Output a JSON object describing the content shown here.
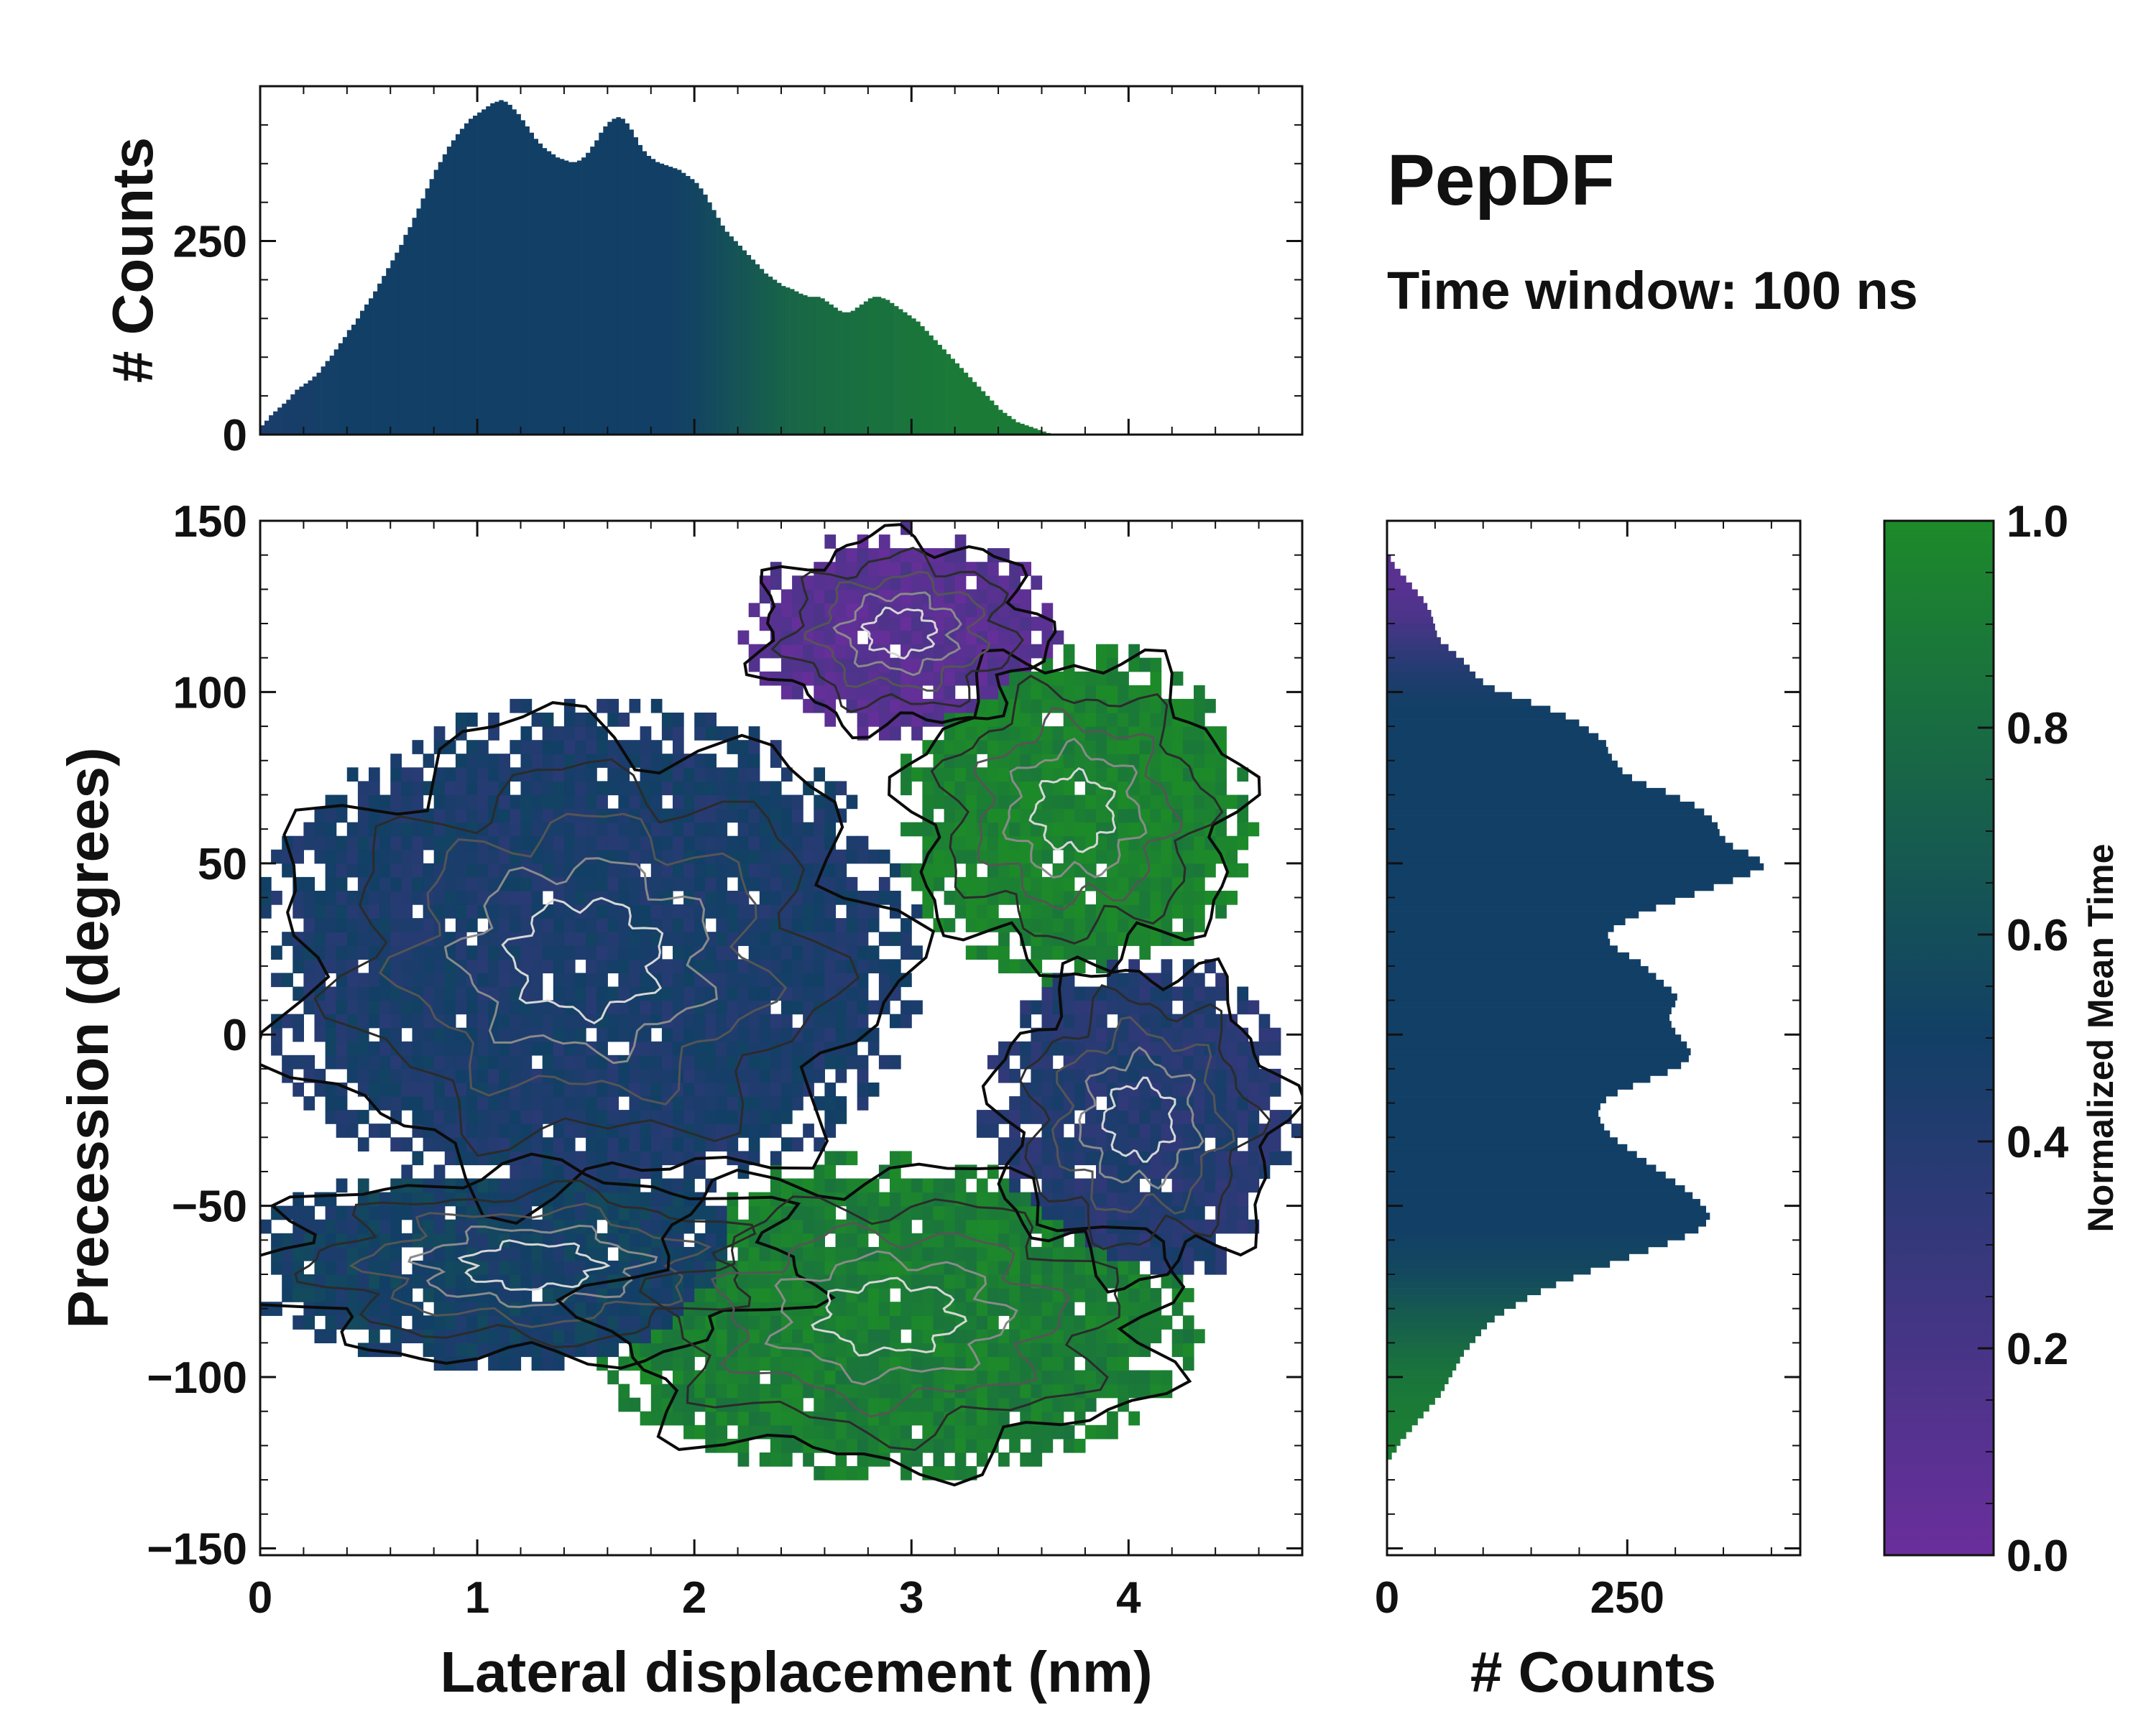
{
  "chart_data": {
    "type": "heatmap",
    "title": "PepDF",
    "subtitle": "Time window: 100 ns",
    "colormap": {
      "low": "#6a2e9c",
      "mid": "#123f66",
      "high": "#1d8a2a",
      "label": "Normalized Mean Time",
      "range": [
        0.0,
        1.0
      ],
      "ticks": [
        0.0,
        0.2,
        0.4,
        0.6,
        0.8,
        1.0
      ],
      "tick_labels": [
        "0.0",
        "0.2",
        "0.4",
        "0.6",
        "0.8",
        "1.0"
      ]
    },
    "main": {
      "xlabel": "Lateral displacement (nm)",
      "ylabel": "Precession (degrees)",
      "xlim": [
        0,
        4.8
      ],
      "ylim": [
        -152,
        150
      ],
      "xticks": [
        0,
        1,
        2,
        3,
        4
      ],
      "xtick_labels": [
        "0",
        "1",
        "2",
        "3",
        "4"
      ],
      "yticks": [
        -150,
        -100,
        -50,
        0,
        50,
        100,
        150
      ],
      "ytick_labels": [
        "−150",
        "−100",
        "−50",
        "0",
        "50",
        "100",
        "150"
      ],
      "regions": [
        {
          "name": "upper purple lobe",
          "x": [
            2.3,
            3.6
          ],
          "y": [
            90,
            145
          ],
          "mean_time": 0.1
        },
        {
          "name": "upper green lobe",
          "x": [
            3.0,
            4.5
          ],
          "y": [
            20,
            110
          ],
          "mean_time": 0.95
        },
        {
          "name": "left blue core",
          "x": [
            0.1,
            2.9
          ],
          "y": [
            -45,
            90
          ],
          "mean_time": 0.45
        },
        {
          "name": "lower left band",
          "x": [
            0.0,
            2.5
          ],
          "y": [
            -95,
            -40
          ],
          "mean_time": 0.5
        },
        {
          "name": "lower green lobe",
          "x": [
            1.6,
            4.2
          ],
          "y": [
            -125,
            -40
          ],
          "mean_time": 0.92
        },
        {
          "name": "right blue lobe",
          "x": [
            3.4,
            4.7
          ],
          "y": [
            -70,
            20
          ],
          "mean_time": 0.4
        }
      ]
    },
    "top_histogram": {
      "ylabel": "# Counts",
      "ylim": [
        0,
        450
      ],
      "yticks": [
        0,
        250
      ],
      "ytick_labels": [
        "0",
        "250"
      ],
      "bin_width_nm": 0.02,
      "values": [
        12,
        18,
        25,
        30,
        35,
        40,
        45,
        52,
        58,
        62,
        66,
        70,
        75,
        80,
        88,
        95,
        102,
        110,
        118,
        126,
        135,
        142,
        150,
        160,
        168,
        176,
        185,
        195,
        205,
        215,
        225,
        235,
        245,
        258,
        268,
        280,
        292,
        305,
        318,
        330,
        342,
        352,
        362,
        372,
        380,
        388,
        395,
        402,
        408,
        412,
        416,
        420,
        424,
        428,
        430,
        432,
        430,
        426,
        420,
        414,
        406,
        398,
        390,
        382,
        376,
        370,
        366,
        362,
        358,
        356,
        354,
        352,
        352,
        354,
        358,
        364,
        372,
        380,
        390,
        398,
        404,
        408,
        410,
        408,
        402,
        394,
        384,
        374,
        366,
        360,
        356,
        352,
        350,
        348,
        346,
        344,
        342,
        338,
        334,
        330,
        325,
        318,
        310,
        300,
        290,
        280,
        270,
        262,
        256,
        250,
        244,
        238,
        232,
        226,
        220,
        214,
        208,
        204,
        200,
        196,
        192,
        190,
        188,
        185,
        182,
        180,
        178,
        178,
        178,
        176,
        172,
        168,
        164,
        160,
        158,
        158,
        160,
        164,
        168,
        172,
        176,
        178,
        178,
        176,
        174,
        170,
        166,
        162,
        158,
        154,
        150,
        146,
        140,
        134,
        128,
        122,
        116,
        110,
        104,
        98,
        92,
        86,
        80,
        74,
        68,
        62,
        56,
        50,
        44,
        38,
        32,
        28,
        24,
        20,
        16,
        14,
        12,
        10,
        8,
        6,
        4,
        2,
        1,
        0,
        0,
        0,
        0,
        0,
        0,
        0,
        0,
        0,
        0,
        0,
        0,
        0,
        0,
        0,
        0,
        0
      ],
      "mean_time": [
        0.45,
        0.45,
        0.46,
        0.46,
        0.46,
        0.47,
        0.47,
        0.47,
        0.48,
        0.48,
        0.48,
        0.48,
        0.48,
        0.49,
        0.49,
        0.49,
        0.49,
        0.49,
        0.5,
        0.5,
        0.5,
        0.5,
        0.5,
        0.5,
        0.5,
        0.5,
        0.5,
        0.5,
        0.5,
        0.5,
        0.5,
        0.5,
        0.5,
        0.5,
        0.5,
        0.5,
        0.5,
        0.5,
        0.5,
        0.5,
        0.5,
        0.5,
        0.5,
        0.5,
        0.5,
        0.5,
        0.5,
        0.5,
        0.5,
        0.5,
        0.5,
        0.5,
        0.5,
        0.5,
        0.5,
        0.5,
        0.5,
        0.5,
        0.5,
        0.5,
        0.5,
        0.5,
        0.5,
        0.5,
        0.5,
        0.5,
        0.5,
        0.5,
        0.5,
        0.5,
        0.5,
        0.5,
        0.5,
        0.5,
        0.5,
        0.5,
        0.5,
        0.5,
        0.5,
        0.5,
        0.5,
        0.5,
        0.5,
        0.5,
        0.5,
        0.5,
        0.5,
        0.5,
        0.5,
        0.5,
        0.5,
        0.5,
        0.5,
        0.5,
        0.5,
        0.51,
        0.51,
        0.52,
        0.52,
        0.53,
        0.54,
        0.55,
        0.56,
        0.57,
        0.58,
        0.59,
        0.6,
        0.61,
        0.62,
        0.63,
        0.64,
        0.65,
        0.66,
        0.67,
        0.68,
        0.69,
        0.7,
        0.71,
        0.72,
        0.73,
        0.74,
        0.75,
        0.76,
        0.76,
        0.77,
        0.77,
        0.78,
        0.78,
        0.79,
        0.79,
        0.8,
        0.8,
        0.8,
        0.81,
        0.81,
        0.81,
        0.82,
        0.82,
        0.82,
        0.82,
        0.83,
        0.83,
        0.83,
        0.84,
        0.84,
        0.84,
        0.85,
        0.85,
        0.85,
        0.86,
        0.86,
        0.86,
        0.87,
        0.87,
        0.87,
        0.88,
        0.88,
        0.88,
        0.89,
        0.89,
        0.89,
        0.9,
        0.9,
        0.9,
        0.9,
        0.9,
        0.9,
        0.9,
        0.9,
        0.9,
        0.9,
        0.9,
        0.9,
        0.9,
        0.9,
        0.9,
        0.9,
        0.9,
        0.9,
        0.9,
        0.9,
        0.9,
        0.9,
        0.9,
        0.9,
        0.9,
        0.9,
        0.9,
        0.9,
        0.9,
        0.9,
        0.9,
        0.9,
        0.9,
        0.9,
        0.9,
        0.9,
        0.9,
        0.9,
        0.9,
        0.9
      ]
    },
    "right_histogram": {
      "xlabel": "# Counts",
      "xlim": [
        0,
        430
      ],
      "xticks": [
        0,
        250
      ],
      "xtick_labels": [
        "0",
        "250"
      ],
      "bin_width_deg": 2,
      "y_start_deg": -152,
      "values": [
        0,
        0,
        0,
        0,
        0,
        0,
        0,
        0,
        0,
        0,
        0,
        0,
        0,
        0,
        5,
        10,
        14,
        20,
        26,
        32,
        38,
        44,
        50,
        56,
        60,
        64,
        68,
        72,
        76,
        80,
        86,
        92,
        98,
        104,
        112,
        122,
        134,
        146,
        160,
        176,
        194,
        212,
        232,
        252,
        272,
        292,
        310,
        324,
        332,
        336,
        332,
        326,
        318,
        310,
        300,
        290,
        280,
        270,
        260,
        250,
        240,
        232,
        226,
        222,
        220,
        222,
        228,
        240,
        256,
        274,
        292,
        306,
        314,
        316,
        312,
        306,
        300,
        296,
        294,
        296,
        300,
        302,
        296,
        288,
        280,
        272,
        264,
        252,
        240,
        232,
        230,
        236,
        248,
        262,
        280,
        300,
        320,
        340,
        360,
        378,
        392,
        388,
        376,
        360,
        352,
        346,
        344,
        338,
        330,
        320,
        305,
        290,
        270,
        255,
        245,
        240,
        234,
        230,
        228,
        220,
        210,
        200,
        186,
        170,
        150,
        130,
        112,
        100,
        92,
        86,
        80,
        72,
        64,
        56,
        52,
        50,
        48,
        46,
        42,
        38,
        32,
        26,
        20,
        14,
        8,
        4,
        0,
        0,
        0,
        0,
        0
      ],
      "mean_time": [
        0.92,
        0.92,
        0.92,
        0.92,
        0.92,
        0.92,
        0.92,
        0.92,
        0.92,
        0.92,
        0.92,
        0.92,
        0.92,
        0.92,
        0.92,
        0.92,
        0.92,
        0.91,
        0.91,
        0.91,
        0.9,
        0.9,
        0.89,
        0.88,
        0.87,
        0.86,
        0.85,
        0.84,
        0.82,
        0.8,
        0.78,
        0.76,
        0.74,
        0.72,
        0.7,
        0.68,
        0.66,
        0.64,
        0.62,
        0.6,
        0.58,
        0.56,
        0.55,
        0.54,
        0.53,
        0.52,
        0.51,
        0.5,
        0.5,
        0.5,
        0.5,
        0.5,
        0.5,
        0.5,
        0.5,
        0.5,
        0.5,
        0.5,
        0.5,
        0.5,
        0.5,
        0.5,
        0.5,
        0.5,
        0.5,
        0.5,
        0.5,
        0.5,
        0.5,
        0.5,
        0.5,
        0.5,
        0.5,
        0.5,
        0.5,
        0.5,
        0.5,
        0.5,
        0.5,
        0.5,
        0.5,
        0.5,
        0.5,
        0.5,
        0.5,
        0.5,
        0.5,
        0.5,
        0.5,
        0.5,
        0.5,
        0.5,
        0.5,
        0.5,
        0.5,
        0.5,
        0.5,
        0.5,
        0.5,
        0.5,
        0.5,
        0.5,
        0.5,
        0.5,
        0.5,
        0.5,
        0.5,
        0.5,
        0.5,
        0.5,
        0.5,
        0.5,
        0.5,
        0.5,
        0.5,
        0.5,
        0.5,
        0.5,
        0.5,
        0.5,
        0.5,
        0.5,
        0.5,
        0.5,
        0.49,
        0.48,
        0.46,
        0.44,
        0.42,
        0.4,
        0.37,
        0.34,
        0.31,
        0.28,
        0.25,
        0.22,
        0.19,
        0.17,
        0.15,
        0.13,
        0.12,
        0.11,
        0.1,
        0.1,
        0.1,
        0.1,
        0.1,
        0.1,
        0.1,
        0.1,
        0.1
      ]
    }
  }
}
